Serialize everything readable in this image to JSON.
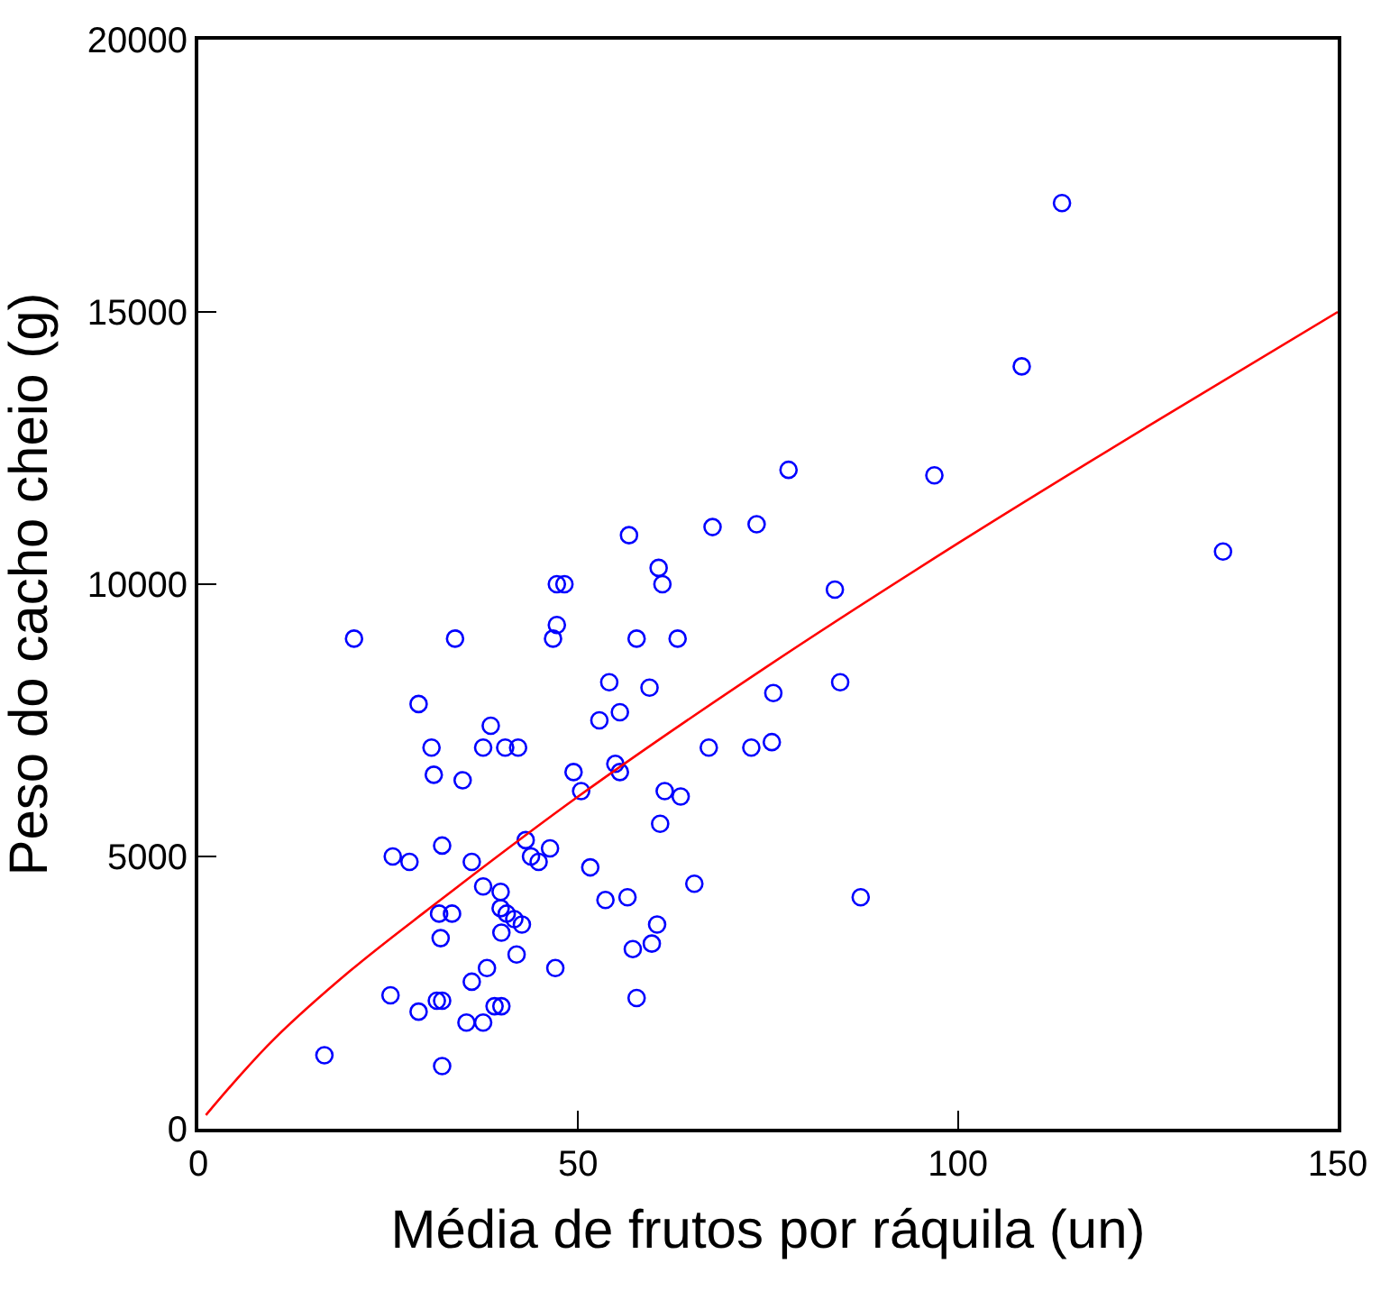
{
  "chart_data": {
    "type": "scatter",
    "xlabel": "Média de frutos por ráquila (un)",
    "ylabel": "Peso do cacho cheio (g)",
    "xlim": [
      0,
      150
    ],
    "xticks": [
      0,
      50,
      100,
      150
    ],
    "ylim": [
      0,
      20000
    ],
    "yticks": [
      0,
      5000,
      10000,
      15000,
      20000
    ],
    "series": [
      {
        "color": "#0000ff",
        "marker": "circle",
        "x": [
          113.7,
          108.4,
          96.9,
          77.7,
          73.5,
          67.7,
          56.7,
          60.6,
          61.1,
          48.2,
          47.2,
          47.2,
          46.7,
          20.5,
          33.8,
          57.7,
          63.1,
          83.8,
          134.9,
          84.5,
          75.7,
          54.1,
          59.4,
          29,
          38.5,
          30.7,
          37.5,
          40.4,
          42.1,
          52.8,
          55.5,
          67.2,
          72.8,
          75.5,
          31,
          34.8,
          49.4,
          54.9,
          55.5,
          50.4,
          61.4,
          63.5,
          60.8,
          25.6,
          27.8,
          32.1,
          36,
          43.1,
          46.3,
          44.8,
          43.8,
          51.6,
          37.5,
          39.8,
          31.7,
          33.4,
          39.8,
          40.6,
          41.6,
          39.9,
          42.6,
          31.9,
          53.6,
          56.5,
          65.3,
          87.2,
          60.4,
          59.7,
          57.2,
          41.9,
          38,
          47,
          36,
          25.3,
          31.4,
          32.1,
          29,
          39,
          39.9,
          35.3,
          37.5,
          57.7,
          16.6,
          32.1
        ],
        "values": [
          17000,
          14000,
          12000,
          12100,
          11100,
          11050,
          10900,
          10300,
          10000,
          10000,
          10000,
          9250,
          9000,
          9000,
          9000,
          9000,
          9000,
          9900,
          10600,
          8200,
          8000,
          8200,
          8100,
          7800,
          7400,
          7000,
          7000,
          7000,
          7000,
          7500,
          7650,
          7000,
          7000,
          7100,
          6500,
          6400,
          6550,
          6700,
          6550,
          6200,
          6200,
          6100,
          5600,
          5000,
          4900,
          5200,
          4900,
          5300,
          5150,
          4900,
          5000,
          4800,
          4450,
          4350,
          3950,
          3950,
          4050,
          3950,
          3850,
          3600,
          3750,
          3500,
          4200,
          4250,
          4500,
          4250,
          3750,
          3400,
          3300,
          3200,
          2950,
          2950,
          2700,
          2450,
          2350,
          2350,
          2150,
          2250,
          2250,
          1950,
          1950,
          2400,
          1350,
          1150
        ]
      },
      {
        "type": "line",
        "color": "#ff0000",
        "marker": "none",
        "x": [
          1,
          5,
          10,
          20,
          30,
          50,
          75,
          100,
          125,
          150
        ],
        "values": [
          250,
          900,
          1650,
          2900,
          4000,
          6100,
          8500,
          10750,
          12900,
          15000
        ]
      }
    ]
  }
}
